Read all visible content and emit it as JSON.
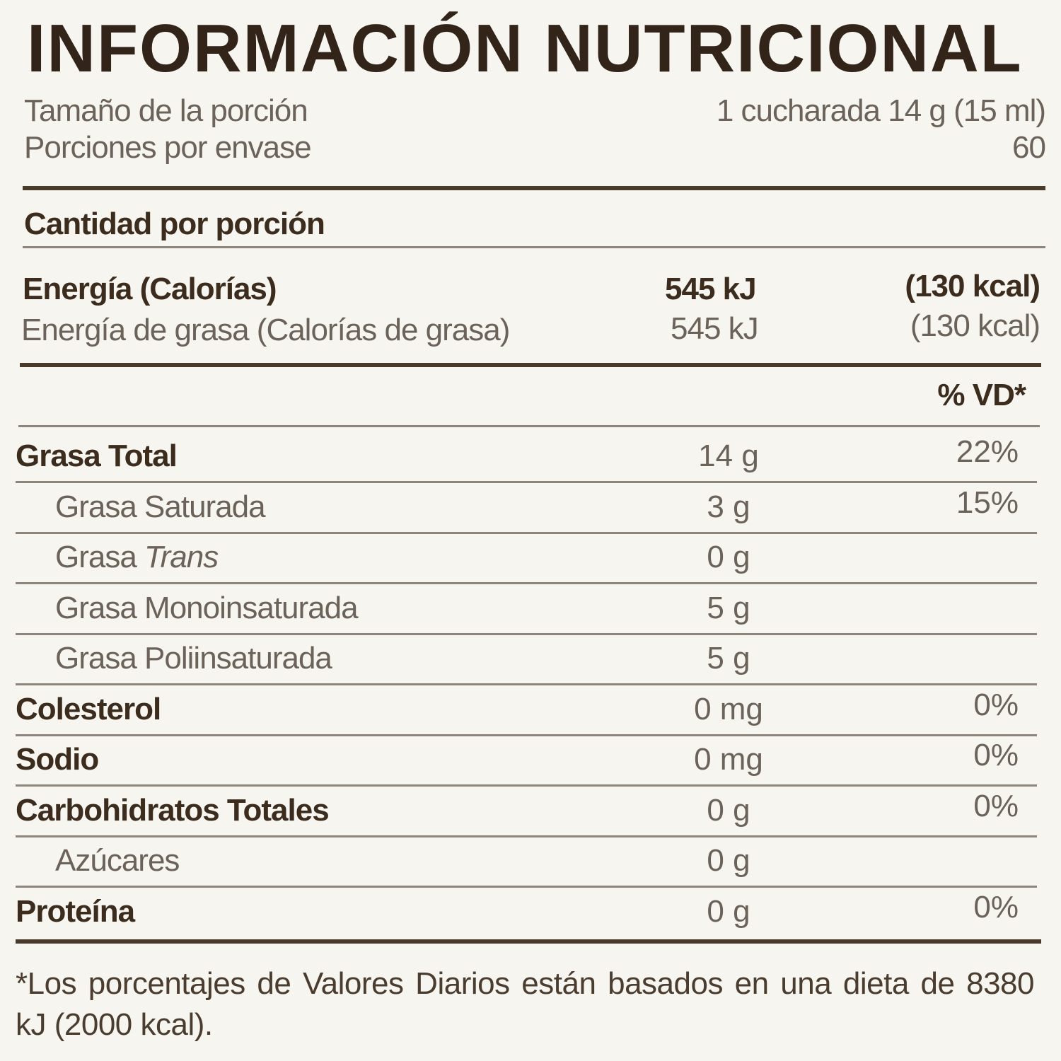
{
  "title": "INFORMACIÓN NUTRICIONAL",
  "serving": {
    "size_label": "Tamaño de la porción",
    "size_value": "1 cucharada 14 g (15 ml)",
    "servings_label": "Porciones por envase",
    "servings_value": "60"
  },
  "amount_per_serving": "Cantidad por porción",
  "energy": {
    "label": "Energía (Calorías)",
    "kj": "545 kJ",
    "kcal": "(130 kcal)",
    "fat_label": "Energía de grasa (Calorías de grasa)",
    "fat_kj": "545 kJ",
    "fat_kcal": "(130 kcal)"
  },
  "dv_header": "% VD*",
  "nutrients": [
    {
      "label": "Grasa Total",
      "amount": "14 g",
      "dv": "22%",
      "level": "main"
    },
    {
      "label": "Grasa Saturada",
      "amount": "3 g",
      "dv": "15%",
      "level": "sub"
    },
    {
      "label": "Grasa ",
      "label_italic": "Trans",
      "amount": "0 g",
      "dv": "",
      "level": "sub"
    },
    {
      "label": "Grasa Monoinsaturada",
      "amount": "5 g",
      "dv": "",
      "level": "sub"
    },
    {
      "label": "Grasa Poliinsaturada",
      "amount": "5 g",
      "dv": "",
      "level": "sub"
    },
    {
      "label": "Colesterol",
      "amount": "0 mg",
      "dv": "0%",
      "level": "main"
    },
    {
      "label": "Sodio",
      "amount": "0 mg",
      "dv": "0%",
      "level": "main"
    },
    {
      "label": "Carbohidratos Totales",
      "amount": "0 g",
      "dv": "0%",
      "level": "main"
    },
    {
      "label": "Azúcares",
      "amount": "0 g",
      "dv": "",
      "level": "sub"
    },
    {
      "label": "Proteína",
      "amount": "0 g",
      "dv": "0%",
      "level": "main"
    }
  ],
  "footnote": "*Los porcentajes de Valores Diarios están basados en una dieta de 8380 kJ (2000 kcal).",
  "colors": {
    "text": "#3b2c1e",
    "secondary": "#6b635a",
    "background": "#f7f5f0"
  }
}
